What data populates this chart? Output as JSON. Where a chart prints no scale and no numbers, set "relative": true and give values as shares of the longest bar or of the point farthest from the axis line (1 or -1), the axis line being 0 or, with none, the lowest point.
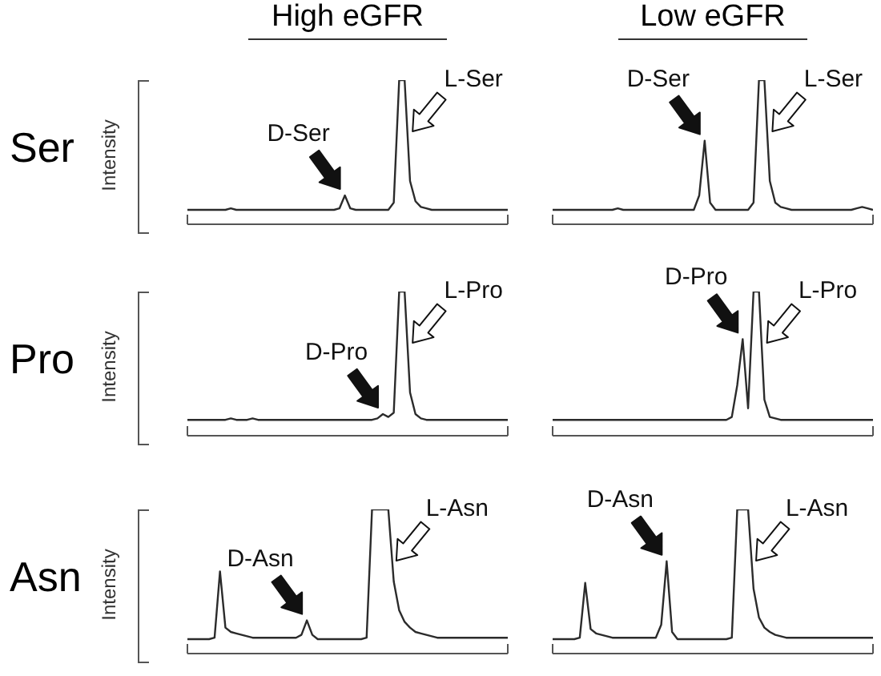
{
  "chart_data": [
    {
      "type": "line",
      "relative": true,
      "title": "High eGFR",
      "ylabel": "Intensity",
      "color": "#2b2b2b",
      "categories": [
        null,
        null,
        null,
        null,
        null,
        null,
        null,
        null,
        null,
        null,
        null,
        null,
        null,
        null,
        null,
        null,
        null,
        null,
        null,
        null,
        null,
        null,
        null,
        null,
        null,
        null,
        null,
        null,
        null,
        null,
        null,
        null,
        null,
        null,
        null,
        null,
        null,
        null,
        null,
        null,
        null,
        null,
        null,
        null,
        null,
        null,
        null,
        null,
        null,
        null,
        null,
        null,
        null,
        null,
        null,
        null,
        null,
        null,
        null,
        null
      ],
      "values": [
        0.1,
        0.1,
        0.1,
        0.1,
        0.1,
        0.1,
        0.1,
        0.1,
        0.11,
        0.1,
        0.1,
        0.1,
        0.1,
        0.1,
        0.1,
        0.1,
        0.1,
        0.1,
        0.1,
        0.1,
        0.1,
        0.1,
        0.1,
        0.1,
        0.1,
        0.1,
        0.1,
        0.1,
        0.11,
        0.2,
        0.11,
        0.1,
        0.1,
        0.1,
        0.1,
        0.1,
        0.1,
        0.1,
        0.15,
        1,
        1,
        0.3,
        0.16,
        0.12,
        0.11,
        0.1,
        0.1,
        0.1,
        0.1,
        0.1,
        0.1,
        0.1,
        0.1,
        0.1,
        0.1,
        0.1,
        0.1,
        0.1,
        0.1,
        0.1
      ],
      "annotations": [
        "Ser",
        "D-Ser",
        "L-Ser"
      ]
    },
    {
      "type": "line",
      "relative": true,
      "title": "Low eGFR",
      "color": "#2b2b2b",
      "categories": [
        null,
        null,
        null,
        null,
        null,
        null,
        null,
        null,
        null,
        null,
        null,
        null,
        null,
        null,
        null,
        null,
        null,
        null,
        null,
        null,
        null,
        null,
        null,
        null,
        null,
        null,
        null,
        null,
        null,
        null,
        null,
        null,
        null,
        null,
        null,
        null,
        null,
        null,
        null,
        null,
        null,
        null,
        null,
        null,
        null,
        null,
        null,
        null,
        null,
        null,
        null,
        null,
        null,
        null,
        null,
        null,
        null,
        null,
        null,
        null
      ],
      "values": [
        0.1,
        0.1,
        0.1,
        0.1,
        0.1,
        0.1,
        0.1,
        0.1,
        0.1,
        0.1,
        0.1,
        0.1,
        0.11,
        0.1,
        0.1,
        0.1,
        0.1,
        0.1,
        0.1,
        0.1,
        0.1,
        0.1,
        0.1,
        0.1,
        0.1,
        0.1,
        0.1,
        0.2,
        0.58,
        0.15,
        0.1,
        0.1,
        0.1,
        0.1,
        0.1,
        0.1,
        0.1,
        0.15,
        1,
        1,
        0.3,
        0.15,
        0.12,
        0.11,
        0.1,
        0.1,
        0.1,
        0.1,
        0.1,
        0.1,
        0.1,
        0.1,
        0.1,
        0.1,
        0.1,
        0.1,
        0.11,
        0.12,
        0.11,
        0.1
      ],
      "annotations": [
        "D-Ser",
        "L-Ser"
      ]
    },
    {
      "type": "line",
      "relative": true,
      "ylabel": "Intensity",
      "color": "#2b2b2b",
      "categories": [
        null,
        null,
        null,
        null,
        null,
        null,
        null,
        null,
        null,
        null,
        null,
        null,
        null,
        null,
        null,
        null,
        null,
        null,
        null,
        null,
        null,
        null,
        null,
        null,
        null,
        null,
        null,
        null,
        null,
        null,
        null,
        null,
        null,
        null,
        null,
        null,
        null,
        null,
        null,
        null,
        null,
        null,
        null,
        null,
        null,
        null,
        null,
        null,
        null,
        null,
        null,
        null,
        null,
        null,
        null,
        null,
        null,
        null,
        null,
        null
      ],
      "values": [
        0.11,
        0.11,
        0.11,
        0.11,
        0.11,
        0.11,
        0.11,
        0.11,
        0.12,
        0.11,
        0.11,
        0.11,
        0.12,
        0.11,
        0.11,
        0.11,
        0.11,
        0.11,
        0.11,
        0.11,
        0.11,
        0.11,
        0.11,
        0.11,
        0.11,
        0.11,
        0.11,
        0.11,
        0.11,
        0.11,
        0.11,
        0.11,
        0.11,
        0.11,
        0.11,
        0.12,
        0.15,
        0.13,
        0.16,
        1,
        1,
        0.3,
        0.15,
        0.12,
        0.11,
        0.11,
        0.11,
        0.11,
        0.11,
        0.11,
        0.11,
        0.11,
        0.11,
        0.11,
        0.11,
        0.11,
        0.11,
        0.11,
        0.11,
        0.11
      ],
      "annotations": [
        "Pro",
        "D-Pro",
        "L-Pro"
      ]
    },
    {
      "type": "line",
      "relative": true,
      "color": "#2b2b2b",
      "categories": [
        null,
        null,
        null,
        null,
        null,
        null,
        null,
        null,
        null,
        null,
        null,
        null,
        null,
        null,
        null,
        null,
        null,
        null,
        null,
        null,
        null,
        null,
        null,
        null,
        null,
        null,
        null,
        null,
        null,
        null,
        null,
        null,
        null,
        null,
        null,
        null,
        null,
        null,
        null,
        null,
        null,
        null,
        null,
        null,
        null,
        null,
        null,
        null,
        null,
        null,
        null,
        null,
        null,
        null,
        null,
        null,
        null,
        null,
        null,
        null
      ],
      "values": [
        0.11,
        0.11,
        0.11,
        0.11,
        0.11,
        0.11,
        0.11,
        0.11,
        0.11,
        0.11,
        0.11,
        0.11,
        0.11,
        0.11,
        0.11,
        0.11,
        0.11,
        0.11,
        0.11,
        0.11,
        0.11,
        0.11,
        0.11,
        0.11,
        0.11,
        0.11,
        0.11,
        0.11,
        0.11,
        0.11,
        0.11,
        0.11,
        0.11,
        0.13,
        0.35,
        0.67,
        0.19,
        1,
        1,
        0.25,
        0.13,
        0.12,
        0.11,
        0.11,
        0.11,
        0.11,
        0.11,
        0.11,
        0.11,
        0.11,
        0.11,
        0.11,
        0.11,
        0.11,
        0.11,
        0.11,
        0.11,
        0.11,
        0.11,
        0.11
      ],
      "annotations": [
        "D-Pro",
        "L-Pro"
      ]
    },
    {
      "type": "line",
      "relative": true,
      "ylabel": "Intensity",
      "color": "#2b2b2b",
      "categories": [
        null,
        null,
        null,
        null,
        null,
        null,
        null,
        null,
        null,
        null,
        null,
        null,
        null,
        null,
        null,
        null,
        null,
        null,
        null,
        null,
        null,
        null,
        null,
        null,
        null,
        null,
        null,
        null,
        null,
        null,
        null,
        null,
        null,
        null,
        null,
        null,
        null,
        null,
        null,
        null,
        null,
        null,
        null,
        null,
        null,
        null,
        null,
        null,
        null,
        null,
        null,
        null,
        null,
        null,
        null,
        null,
        null,
        null,
        null,
        null
      ],
      "values": [
        0.1,
        0.1,
        0.1,
        0.1,
        0.1,
        0.11,
        0.57,
        0.18,
        0.15,
        0.14,
        0.13,
        0.12,
        0.11,
        0.11,
        0.11,
        0.11,
        0.11,
        0.11,
        0.11,
        0.11,
        0.11,
        0.13,
        0.23,
        0.13,
        0.1,
        0.1,
        0.1,
        0.1,
        0.1,
        0.1,
        0.1,
        0.1,
        0.1,
        0.11,
        1,
        1,
        1,
        1,
        0.5,
        0.3,
        0.22,
        0.18,
        0.15,
        0.14,
        0.13,
        0.12,
        0.11,
        0.11,
        0.11,
        0.11,
        0.11,
        0.11,
        0.11,
        0.11,
        0.11,
        0.11,
        0.11,
        0.11,
        0.11,
        0.11
      ],
      "annotations": [
        "Asn",
        "D-Asn",
        "L-Asn"
      ]
    },
    {
      "type": "line",
      "relative": true,
      "color": "#2b2b2b",
      "categories": [
        null,
        null,
        null,
        null,
        null,
        null,
        null,
        null,
        null,
        null,
        null,
        null,
        null,
        null,
        null,
        null,
        null,
        null,
        null,
        null,
        null,
        null,
        null,
        null,
        null,
        null,
        null,
        null,
        null,
        null,
        null,
        null,
        null,
        null,
        null,
        null,
        null,
        null,
        null,
        null,
        null,
        null,
        null,
        null,
        null,
        null,
        null,
        null,
        null,
        null,
        null,
        null,
        null,
        null,
        null,
        null,
        null,
        null,
        null,
        null
      ],
      "values": [
        0.1,
        0.1,
        0.1,
        0.1,
        0.1,
        0.11,
        0.49,
        0.17,
        0.14,
        0.13,
        0.12,
        0.11,
        0.11,
        0.11,
        0.11,
        0.11,
        0.11,
        0.11,
        0.11,
        0.11,
        0.2,
        0.64,
        0.15,
        0.1,
        0.1,
        0.1,
        0.1,
        0.1,
        0.1,
        0.1,
        0.1,
        0.1,
        0.1,
        0.11,
        1,
        1,
        1,
        0.45,
        0.25,
        0.18,
        0.15,
        0.13,
        0.12,
        0.11,
        0.11,
        0.11,
        0.11,
        0.11,
        0.11,
        0.11,
        0.11,
        0.11,
        0.11,
        0.11,
        0.11,
        0.11,
        0.11,
        0.11,
        0.11,
        0.11
      ],
      "annotations": [
        "D-Asn",
        "L-Asn"
      ]
    }
  ]
}
